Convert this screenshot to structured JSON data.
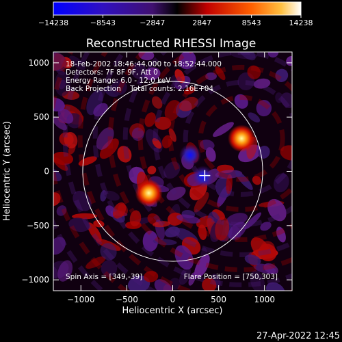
{
  "chart_data": {
    "type": "heatmap",
    "title": "Reconstructed RHESSI Image",
    "xlabel": "Heliocentric X (arcsec)",
    "ylabel": "Heliocentric Y (arcsec)",
    "xlim": [
      -1300,
      1300
    ],
    "ylim": [
      -1100,
      1100
    ],
    "xticks": [
      -1000,
      -500,
      0,
      500,
      1000
    ],
    "yticks": [
      -1000,
      -500,
      0,
      500,
      1000
    ],
    "xtick_labels": [
      "−1000",
      "−500",
      "0",
      "500",
      "1000"
    ],
    "ytick_labels": [
      "−1000",
      "−500",
      "0",
      "500",
      "1000"
    ],
    "colorbar": {
      "ticks": [
        -14238,
        -8543,
        -2847,
        2847,
        8543,
        14238
      ],
      "labels": [
        "−14238",
        "−8543",
        "−2847",
        "2847",
        "8543",
        "14238"
      ],
      "colors": [
        "#0000ff",
        "#2a0080",
        "#000000",
        "#d00000",
        "#ff9000",
        "#ffffff"
      ]
    },
    "info_lines": [
      "18-Feb-2002 18:46:44.000 to 18:52:44.000",
      "Detectors: 7F 8F 9F, Att 0",
      "Energy Range: 6.0 - 12.0 keV",
      "Back Projection    Total counts: 2.16E+04"
    ],
    "spin_axis_label": "Spin Axis = [349,-39]",
    "flare_position_label": "Flare Position = [750,303]",
    "spin_axis": [
      349,
      -39
    ],
    "flare_position": [
      750,
      303
    ],
    "sources": [
      {
        "x": 750,
        "y": 303,
        "sign": "positive"
      },
      {
        "x": -260,
        "y": -200,
        "sign": "positive"
      },
      {
        "x": 190,
        "y": 150,
        "sign": "negative"
      },
      {
        "x": 330,
        "y": -50,
        "sign": "negative"
      }
    ],
    "solar_limb_radius": 980,
    "grid": false,
    "timestamp": "27-Apr-2022 12:45"
  }
}
